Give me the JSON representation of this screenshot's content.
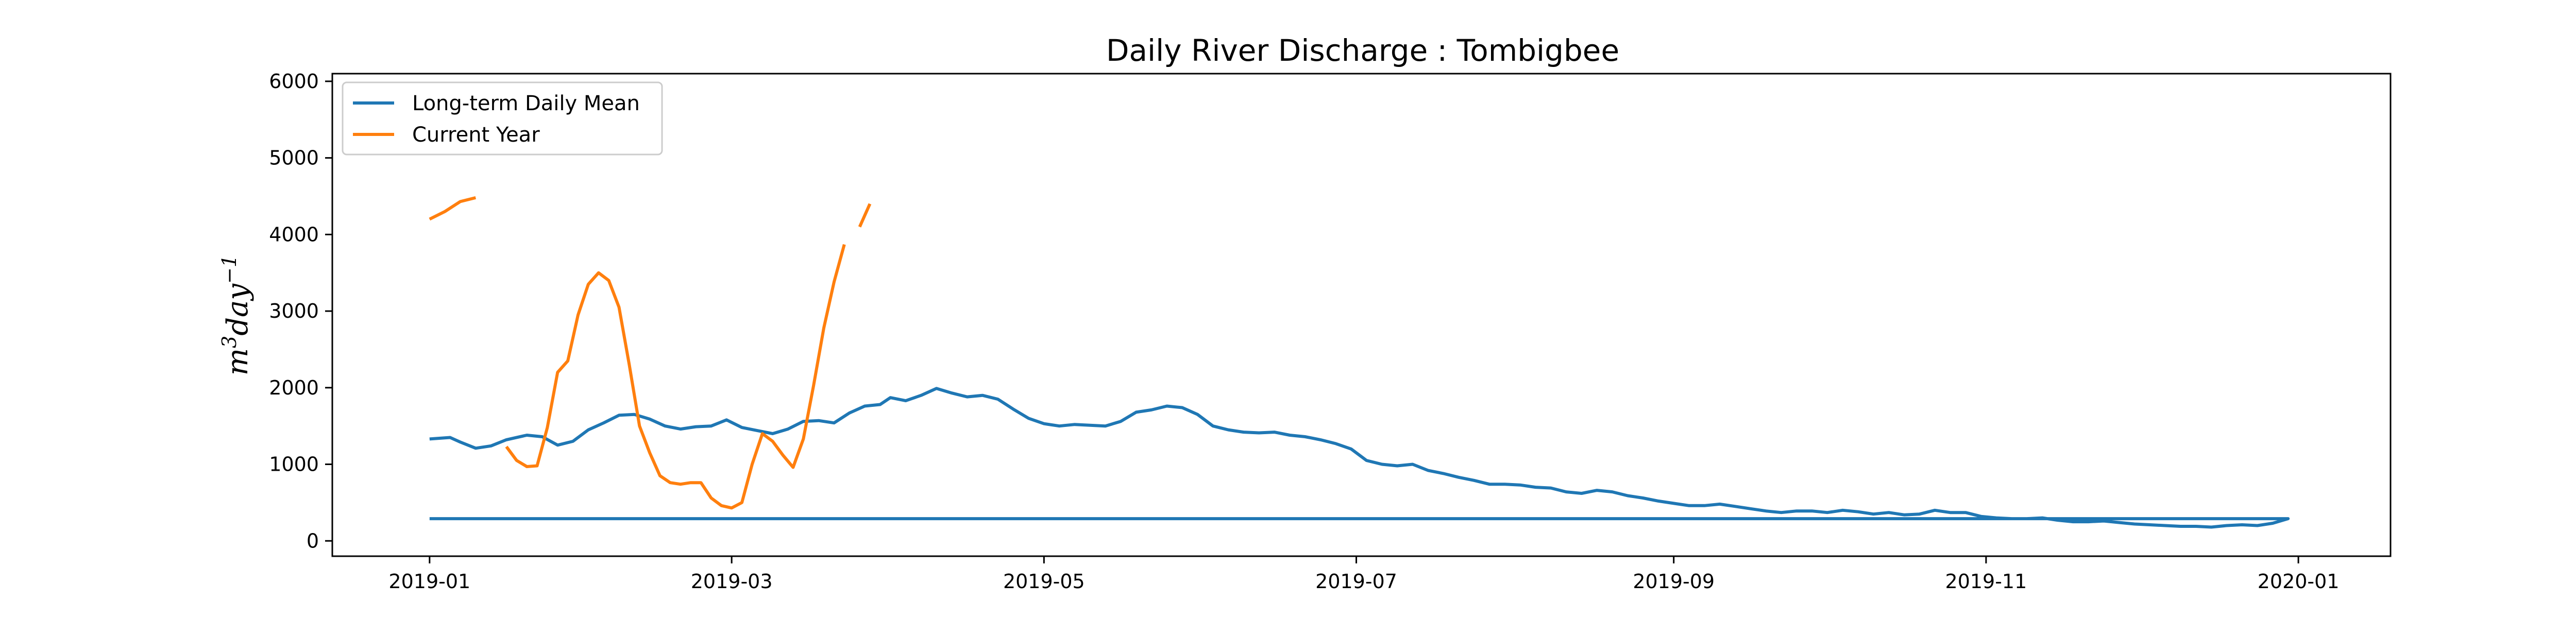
{
  "chart_data": {
    "type": "line",
    "title": "Daily River Discharge : Tombigbee",
    "xlabel": "",
    "ylabel": {
      "base": "m",
      "sup1": "3",
      "mid": "day",
      "sup2": "−1"
    },
    "xlim": [
      "2018-12-13",
      "2020-01-19"
    ],
    "ylim": [
      -200,
      6100
    ],
    "x_ticks": [
      {
        "date": "2019-01-01",
        "label": "2019-01"
      },
      {
        "date": "2019-03-01",
        "label": "2019-03"
      },
      {
        "date": "2019-05-01",
        "label": "2019-05"
      },
      {
        "date": "2019-07-01",
        "label": "2019-07"
      },
      {
        "date": "2019-09-01",
        "label": "2019-09"
      },
      {
        "date": "2019-11-01",
        "label": "2019-11"
      },
      {
        "date": "2020-01-01",
        "label": "2020-01"
      }
    ],
    "y_ticks": [
      0,
      1000,
      2000,
      3000,
      4000,
      5000,
      6000
    ],
    "grid": false,
    "legend_position": "top-left",
    "series": [
      {
        "name": "Long-term Daily Mean",
        "color": "#1f77b4",
        "points": [
          [
            "2019-01-01",
            1330
          ],
          [
            "2019-01-05",
            1350
          ],
          [
            "2019-01-07",
            1290
          ],
          [
            "2019-01-10",
            1210
          ],
          [
            "2019-01-13",
            1240
          ],
          [
            "2019-01-16",
            1320
          ],
          [
            "2019-01-20",
            1380
          ],
          [
            "2019-01-23",
            1360
          ],
          [
            "2019-01-26",
            1250
          ],
          [
            "2019-01-29",
            1300
          ],
          [
            "2019-02-01",
            1450
          ],
          [
            "2019-02-04",
            1540
          ],
          [
            "2019-02-07",
            1640
          ],
          [
            "2019-02-10",
            1650
          ],
          [
            "2019-02-13",
            1590
          ],
          [
            "2019-02-16",
            1500
          ],
          [
            "2019-02-19",
            1460
          ],
          [
            "2019-02-22",
            1490
          ],
          [
            "2019-02-25",
            1500
          ],
          [
            "2019-02-28",
            1580
          ],
          [
            "2019-03-03",
            1480
          ],
          [
            "2019-03-06",
            1440
          ],
          [
            "2019-03-09",
            1400
          ],
          [
            "2019-03-12",
            1460
          ],
          [
            "2019-03-15",
            1560
          ],
          [
            "2019-03-18",
            1570
          ],
          [
            "2019-03-21",
            1540
          ],
          [
            "2019-03-24",
            1670
          ],
          [
            "2019-03-27",
            1760
          ],
          [
            "2019-03-30",
            1780
          ],
          [
            "2019-04-01",
            1870
          ],
          [
            "2019-04-04",
            1830
          ],
          [
            "2019-04-07",
            1900
          ],
          [
            "2019-04-10",
            1990
          ],
          [
            "2019-04-13",
            1930
          ],
          [
            "2019-04-16",
            1880
          ],
          [
            "2019-04-19",
            1900
          ],
          [
            "2019-04-22",
            1850
          ],
          [
            "2019-04-25",
            1720
          ],
          [
            "2019-04-28",
            1600
          ],
          [
            "2019-05-01",
            1530
          ],
          [
            "2019-05-04",
            1500
          ],
          [
            "2019-05-07",
            1520
          ],
          [
            "2019-05-10",
            1510
          ],
          [
            "2019-05-13",
            1500
          ],
          [
            "2019-05-16",
            1560
          ],
          [
            "2019-05-19",
            1680
          ],
          [
            "2019-05-22",
            1710
          ],
          [
            "2019-05-25",
            1760
          ],
          [
            "2019-05-28",
            1740
          ],
          [
            "2019-05-31",
            1650
          ],
          [
            "2019-06-03",
            1500
          ],
          [
            "2019-06-06",
            1450
          ],
          [
            "2019-06-09",
            1420
          ],
          [
            "2019-06-12",
            1410
          ],
          [
            "2019-06-15",
            1420
          ],
          [
            "2019-06-18",
            1380
          ],
          [
            "2019-06-21",
            1360
          ],
          [
            "2019-06-24",
            1320
          ],
          [
            "2019-06-27",
            1270
          ],
          [
            "2019-06-30",
            1200
          ],
          [
            "2019-07-03",
            1050
          ],
          [
            "2019-07-06",
            1000
          ],
          [
            "2019-07-09",
            980
          ],
          [
            "2019-07-12",
            1000
          ],
          [
            "2019-07-15",
            920
          ],
          [
            "2019-07-18",
            880
          ],
          [
            "2019-07-21",
            830
          ],
          [
            "2019-07-24",
            790
          ],
          [
            "2019-07-27",
            740
          ],
          [
            "2019-07-30",
            740
          ],
          [
            "2019-08-02",
            730
          ],
          [
            "2019-08-05",
            700
          ],
          [
            "2019-08-08",
            690
          ],
          [
            "2019-08-11",
            640
          ],
          [
            "2019-08-14",
            620
          ],
          [
            "2019-08-17",
            660
          ],
          [
            "2019-08-20",
            640
          ],
          [
            "2019-08-23",
            590
          ],
          [
            "2019-08-26",
            560
          ],
          [
            "2019-08-29",
            520
          ],
          [
            "2019-09-01",
            490
          ],
          [
            "2019-09-04",
            460
          ],
          [
            "2019-09-07",
            460
          ],
          [
            "2019-09-10",
            480
          ],
          [
            "2019-09-13",
            450
          ],
          [
            "2019-09-16",
            420
          ],
          [
            "2019-09-19",
            390
          ],
          [
            "2019-09-22",
            370
          ],
          [
            "2019-09-25",
            390
          ],
          [
            "2019-09-28",
            390
          ],
          [
            "2019-10-01",
            370
          ],
          [
            "2019-10-04",
            400
          ],
          [
            "2019-10-07",
            380
          ],
          [
            "2019-10-10",
            350
          ],
          [
            "2019-10-13",
            370
          ],
          [
            "2019-10-16",
            340
          ],
          [
            "2019-10-19",
            350
          ],
          [
            "2019-10-22",
            400
          ],
          [
            "2019-10-25",
            370
          ],
          [
            "2019-10-28",
            370
          ],
          [
            "2019-10-31",
            320
          ],
          [
            "2019-11-03",
            300
          ],
          [
            "2019-11-06",
            290
          ],
          [
            "2019-11-09",
            290
          ],
          [
            "2019-11-12",
            300
          ],
          [
            "2019-11-15",
            270
          ],
          [
            "2019-11-18",
            250
          ],
          [
            "2019-11-21",
            250
          ],
          [
            "2019-11-24",
            260
          ],
          [
            "2019-11-27",
            240
          ],
          [
            "2019-11-30",
            220
          ],
          [
            "2019-12-03",
            210
          ],
          [
            "2019-12-06",
            200
          ],
          [
            "2019-12-09",
            190
          ],
          [
            "2019-12-12",
            190
          ],
          [
            "2019-12-15",
            180
          ],
          [
            "2019-12-18",
            200
          ],
          [
            "2019-12-21",
            210
          ],
          [
            "2019-12-24",
            200
          ],
          [
            "2019-12-27",
            230
          ],
          [
            "2019-12-30",
            290
          ],
          [
            "2019-01-01",
            290
          ]
        ]
      },
      {
        "name": "Current Year",
        "color": "#ff7f0e",
        "segments": [
          [
            [
              "2019-01-01",
              4200
            ],
            [
              "2019-01-04",
              4300
            ],
            [
              "2019-01-07",
              4430
            ],
            [
              "2019-01-10",
              4480
            ]
          ],
          [
            [
              "2019-01-16",
              1230
            ],
            [
              "2019-01-18",
              1050
            ],
            [
              "2019-01-20",
              970
            ],
            [
              "2019-01-22",
              980
            ],
            [
              "2019-01-24",
              1480
            ],
            [
              "2019-01-26",
              2200
            ],
            [
              "2019-01-28",
              2350
            ],
            [
              "2019-01-30",
              2950
            ],
            [
              "2019-02-01",
              3350
            ],
            [
              "2019-02-03",
              3500
            ],
            [
              "2019-02-05",
              3400
            ],
            [
              "2019-02-07",
              3050
            ],
            [
              "2019-02-09",
              2300
            ],
            [
              "2019-02-11",
              1500
            ],
            [
              "2019-02-13",
              1150
            ],
            [
              "2019-02-15",
              850
            ],
            [
              "2019-02-17",
              760
            ],
            [
              "2019-02-19",
              740
            ],
            [
              "2019-02-21",
              760
            ],
            [
              "2019-02-23",
              760
            ],
            [
              "2019-02-25",
              560
            ],
            [
              "2019-02-27",
              460
            ],
            [
              "2019-03-01",
              430
            ],
            [
              "2019-03-03",
              500
            ],
            [
              "2019-03-05",
              1000
            ],
            [
              "2019-03-07",
              1400
            ],
            [
              "2019-03-09",
              1300
            ],
            [
              "2019-03-11",
              1120
            ],
            [
              "2019-03-13",
              960
            ],
            [
              "2019-03-15",
              1330
            ],
            [
              "2019-03-17",
              2030
            ],
            [
              "2019-03-19",
              2780
            ],
            [
              "2019-03-21",
              3380
            ],
            [
              "2019-03-23",
              3870
            ]
          ],
          [
            [
              "2019-03-26",
              4100
            ],
            [
              "2019-03-28",
              4400
            ]
          ]
        ]
      }
    ]
  }
}
